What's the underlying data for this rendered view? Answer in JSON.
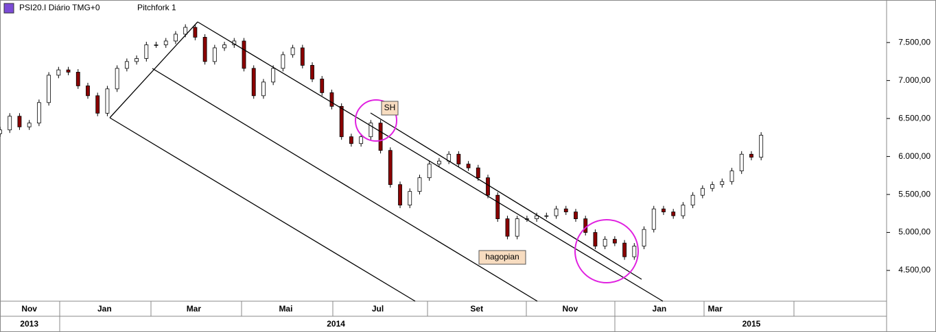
{
  "header": {
    "symbol": "PSI20.I Diário TMG+0",
    "study": "Pitchfork 1"
  },
  "chart_data": {
    "type": "candlestick",
    "annotations": [
      "SH",
      "hagopian"
    ],
    "up_color": "#ffffff",
    "down_color": "#8b0000",
    "xlim": [
      0,
      636
    ],
    "ylim": [
      4095,
      8060
    ],
    "yticks": [
      {
        "value": 4500,
        "label": "4.500,00"
      },
      {
        "value": 5000,
        "label": "5.000,00"
      },
      {
        "value": 5500,
        "label": "5.500,00"
      },
      {
        "value": 6000,
        "label": "6.000,00"
      },
      {
        "value": 6500,
        "label": "6.500,00"
      },
      {
        "value": 7000,
        "label": "7.000,00"
      },
      {
        "value": 7500,
        "label": "7.500,00"
      }
    ],
    "xticks": [
      {
        "value": 21,
        "label": "Nov"
      },
      {
        "value": 75,
        "label": "Jan"
      },
      {
        "value": 139,
        "label": "Mar"
      },
      {
        "value": 205,
        "label": "Mai"
      },
      {
        "value": 271,
        "label": "Jul"
      },
      {
        "value": 342,
        "label": "Set"
      },
      {
        "value": 409,
        "label": "Nov"
      },
      {
        "value": 473,
        "label": "Jan"
      },
      {
        "value": 513,
        "label": "Mar"
      }
    ],
    "year_ticks": [
      {
        "value": 21,
        "label": "2013"
      },
      {
        "value": 241,
        "label": "2014"
      },
      {
        "value": 539,
        "label": "2015"
      }
    ],
    "x": [
      0,
      7,
      14,
      21,
      28,
      35,
      42,
      49,
      56,
      63,
      70,
      77,
      84,
      91,
      98,
      105,
      112,
      119,
      126,
      133,
      140,
      147,
      154,
      161,
      168,
      175,
      182,
      189,
      196,
      203,
      210,
      217,
      224,
      231,
      238,
      245,
      252,
      259,
      266,
      273,
      280,
      287,
      294,
      301,
      308,
      315,
      322,
      329,
      336,
      343,
      350,
      357,
      364,
      371,
      378,
      385,
      392,
      399,
      406,
      413,
      420,
      427,
      434,
      441,
      448,
      455,
      462,
      469,
      476,
      483,
      490,
      497,
      504,
      511,
      518,
      525,
      532,
      539,
      546
    ],
    "open": [
      6300,
      6350,
      6530,
      6390,
      6440,
      6710,
      7070,
      7140,
      7110,
      6930,
      6800,
      6570,
      6890,
      7160,
      7250,
      7290,
      7470,
      7470,
      7520,
      7610,
      7700,
      7570,
      7250,
      7430,
      7470,
      7520,
      7160,
      6800,
      6980,
      7160,
      7340,
      7430,
      7200,
      7020,
      6840,
      6660,
      6260,
      6170,
      6260,
      6440,
      6080,
      5630,
      5360,
      5540,
      5720,
      5900,
      5940,
      6030,
      5900,
      5850,
      5720,
      5490,
      5180,
      4950,
      5180,
      5180,
      5220,
      5220,
      5310,
      5270,
      5180,
      5000,
      4820,
      4910,
      4860,
      4680,
      4820,
      5040,
      5310,
      5270,
      5220,
      5360,
      5490,
      5580,
      5630,
      5670,
      5810,
      6030,
      5990
    ],
    "high": [
      6390,
      6570,
      6570,
      6480,
      6750,
      7110,
      7180,
      7180,
      7150,
      6970,
      6840,
      6930,
      7200,
      7290,
      7330,
      7510,
      7510,
      7560,
      7650,
      7740,
      7740,
      7610,
      7470,
      7510,
      7560,
      7560,
      7200,
      7020,
      7200,
      7380,
      7470,
      7470,
      7240,
      7060,
      6880,
      6700,
      6300,
      6300,
      6480,
      6480,
      6120,
      5670,
      5580,
      5760,
      5940,
      5980,
      6070,
      6070,
      5940,
      5890,
      5760,
      5530,
      5220,
      5220,
      5220,
      5260,
      5260,
      5350,
      5350,
      5310,
      5220,
      5040,
      4950,
      4950,
      4900,
      4860,
      5080,
      5350,
      5350,
      5310,
      5400,
      5530,
      5620,
      5670,
      5710,
      5850,
      6070,
      6070,
      6320
    ],
    "low": [
      6260,
      6310,
      6350,
      6350,
      6400,
      6670,
      7030,
      7070,
      6890,
      6760,
      6530,
      6530,
      6850,
      7120,
      7210,
      7250,
      7430,
      7430,
      7480,
      7570,
      7530,
      7210,
      7210,
      7390,
      7430,
      7120,
      6760,
      6760,
      6940,
      7120,
      7300,
      7160,
      6980,
      6800,
      6620,
      6220,
      6130,
      6130,
      6220,
      6040,
      5590,
      5320,
      5320,
      5500,
      5680,
      5860,
      5900,
      5860,
      5810,
      5680,
      5450,
      5140,
      4910,
      4910,
      5140,
      5140,
      5180,
      5180,
      5230,
      5140,
      4960,
      4780,
      4780,
      4820,
      4640,
      4640,
      4780,
      5000,
      5230,
      5180,
      5180,
      5320,
      5450,
      5540,
      5590,
      5630,
      5770,
      5950,
      5950
    ],
    "close": [
      6350,
      6530,
      6390,
      6440,
      6710,
      7070,
      7140,
      7110,
      6930,
      6800,
      6570,
      6890,
      7160,
      7250,
      7290,
      7470,
      7470,
      7520,
      7610,
      7700,
      7570,
      7250,
      7430,
      7470,
      7520,
      7160,
      6800,
      6980,
      7160,
      7340,
      7430,
      7200,
      7020,
      6840,
      6660,
      6260,
      6170,
      6260,
      6440,
      6080,
      5630,
      5360,
      5540,
      5720,
      5900,
      5940,
      6030,
      5900,
      5850,
      5720,
      5490,
      5180,
      4950,
      5180,
      5180,
      5220,
      5220,
      5310,
      5270,
      5180,
      5000,
      4820,
      4910,
      4860,
      4680,
      4820,
      5040,
      5310,
      5270,
      5220,
      5360,
      5490,
      5580,
      5630,
      5670,
      5810,
      6030,
      5990,
      6280
    ]
  }
}
